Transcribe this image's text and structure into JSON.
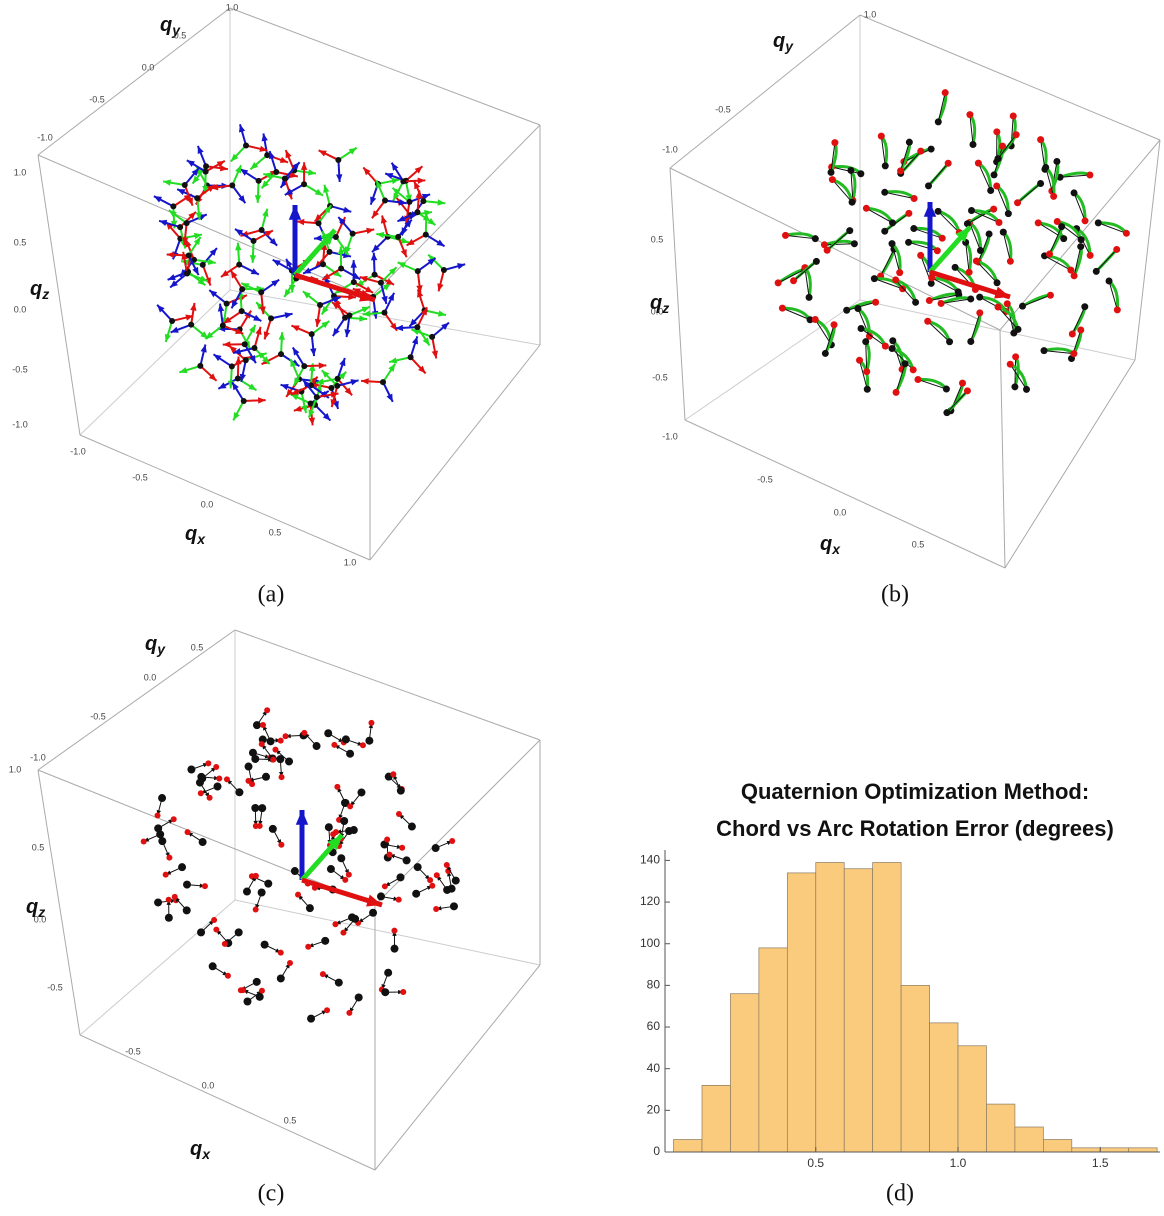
{
  "panels": [
    {
      "caption": "(a)",
      "axes": {
        "y": {
          "base": "q",
          "sub": "y"
        },
        "z": {
          "base": "q",
          "sub": "z"
        },
        "x": {
          "base": "q",
          "sub": "x"
        }
      },
      "yticks": [
        "1.0",
        "0.5",
        "0.0",
        "-0.5",
        "-1.0"
      ],
      "zticks": [
        "1.0",
        "0.5",
        "0.0",
        "-0.5",
        "-1.0"
      ],
      "xticks": [
        "-1.0",
        "-0.5",
        "0.0",
        "0.5",
        "1.0"
      ]
    },
    {
      "caption": "(b)",
      "axes": {
        "y": {
          "base": "q",
          "sub": "y"
        },
        "z": {
          "base": "q",
          "sub": "z"
        },
        "x": {
          "base": "q",
          "sub": "x"
        }
      },
      "yticks": [
        "1.0",
        "-0.5",
        "-1.0"
      ],
      "zticks": [
        "0.5",
        "0.0",
        "-0.5",
        "-1.0"
      ],
      "xticks": [
        "-0.5",
        "0.0",
        "0.5"
      ]
    },
    {
      "caption": "(c)",
      "axes": {
        "y": {
          "base": "q",
          "sub": "y"
        },
        "z": {
          "base": "q",
          "sub": "z"
        },
        "x": {
          "base": "q",
          "sub": "x"
        }
      },
      "yticks": [
        "0.5",
        "0.0",
        "-0.5",
        "-1.0"
      ],
      "zticks": [
        "1.0",
        "0.5",
        "0.0",
        "-0.5"
      ],
      "xticks": [
        "-0.5",
        "0.0",
        "0.5"
      ]
    }
  ],
  "chart_data": {
    "type": "histogram",
    "title": [
      "Quaternion Optimization Method:",
      "Chord vs Arc Rotation Error (degrees)"
    ],
    "caption": "(d)",
    "bins": [
      0.0,
      0.1,
      0.2,
      0.3,
      0.4,
      0.5,
      0.6,
      0.7,
      0.8,
      0.9,
      1.0,
      1.1,
      1.2,
      1.3,
      1.4,
      1.5,
      1.6,
      1.7
    ],
    "values": [
      6,
      32,
      76,
      98,
      134,
      139,
      136,
      139,
      80,
      62,
      51,
      23,
      12,
      6,
      2,
      2,
      2
    ],
    "color": "#fbcb7d",
    "xlim": [
      -0.03,
      1.71
    ],
    "ylim": [
      0,
      145
    ],
    "xticks": [
      0.5,
      {
        "value": 1,
        "label": "1.0"
      },
      1.5
    ],
    "yticks": [
      0,
      20,
      40,
      60,
      80,
      100,
      120,
      140
    ]
  }
}
